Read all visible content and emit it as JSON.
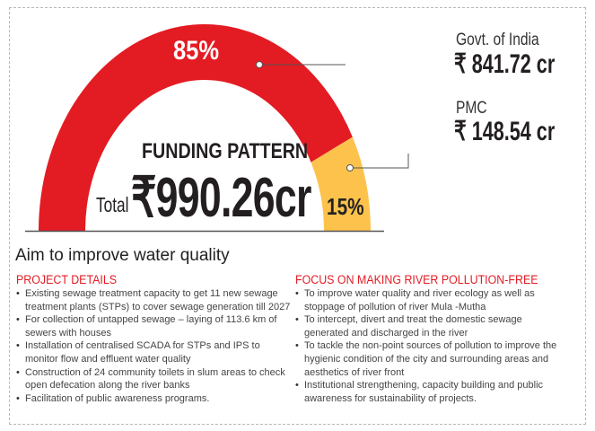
{
  "chart_data": {
    "type": "pie",
    "variant": "semi-donut",
    "title": "FUNDING PATTERN",
    "total": {
      "label": "Total",
      "value": "₹990.26cr"
    },
    "slices": [
      {
        "name": "Govt. of India",
        "amount": "₹ 841.72 cr",
        "value": 841.72,
        "percent": 85,
        "percent_label": "85%",
        "color": "#e31b23"
      },
      {
        "name": "PMC",
        "amount": "₹ 148.54 cr",
        "value": 148.54,
        "percent": 15,
        "percent_label": "15%",
        "color": "#fdc24c"
      }
    ]
  },
  "section": {
    "title": "Aim to improve water quality",
    "left": {
      "heading": "PROJECT DETAILS",
      "items": [
        "Existing sewage treatment capacity to get 11 new sewage treatment plants (STPs) to cover sewage generation till 2027",
        "For collection of untapped sewage – laying of 113.6 km of sewers with houses",
        "Installation of centralised SCADA for STPs and IPS to monitor flow and effluent water quality",
        "Construction of 24 community toilets in slum areas to check open defecation along the river banks",
        "Facilitation of public awareness programs."
      ]
    },
    "right": {
      "heading": "FOCUS ON MAKING RIVER POLLUTION-FREE",
      "items": [
        "To improve water quality and river ecology as well as stoppage of pollution of river Mula -Mutha",
        "To intercept, divert and treat the domestic sewage generated and discharged in the river",
        "To tackle the non-point sources of pollution to improve the hygienic condition of the city and surrounding areas and aesthetics of river front",
        "Institutional strengthening, capacity building and public awareness for sustainability of projects."
      ]
    }
  }
}
